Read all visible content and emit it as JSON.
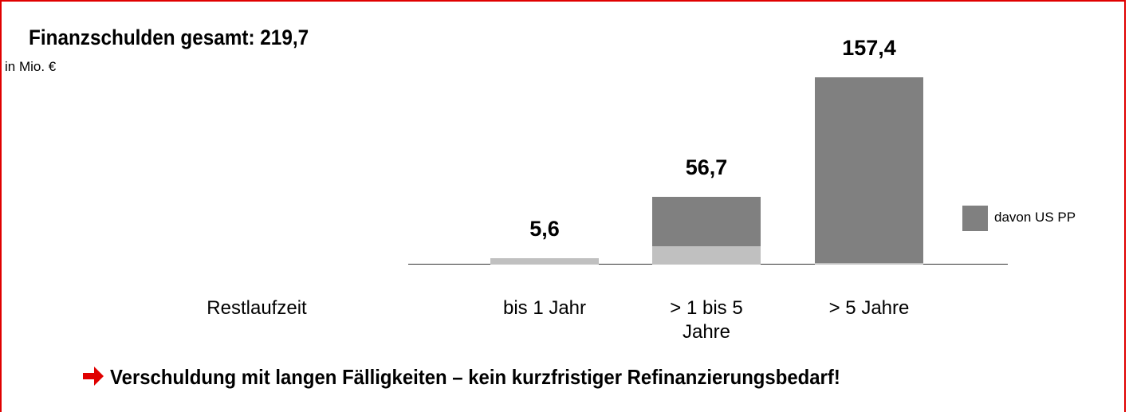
{
  "chart_data": {
    "type": "stacked_bar",
    "title": "Finanzschulden gesamt: 219,7",
    "subtitle": "in Mio. €",
    "x_label": "Restlaufzeit",
    "categories": [
      "bis 1 Jahr",
      "> 1 bis 5 Jahre",
      "> 5 Jahre"
    ],
    "series": [
      {
        "color": "#c0c0c0",
        "values": [
          5.6,
          15.4,
          1.5
        ]
      },
      {
        "name": "davon US PP",
        "color": "#808080",
        "values": [
          0,
          41.3,
          155.9
        ]
      }
    ],
    "totals": [
      5.6,
      56.7,
      157.4
    ],
    "total_labels": [
      "5,6",
      "56,7",
      "157,4"
    ],
    "annotation": "Verschuldung mit langen Fälligkeiten – kein kurzfristiger Refinanzierungsbedarf!"
  }
}
